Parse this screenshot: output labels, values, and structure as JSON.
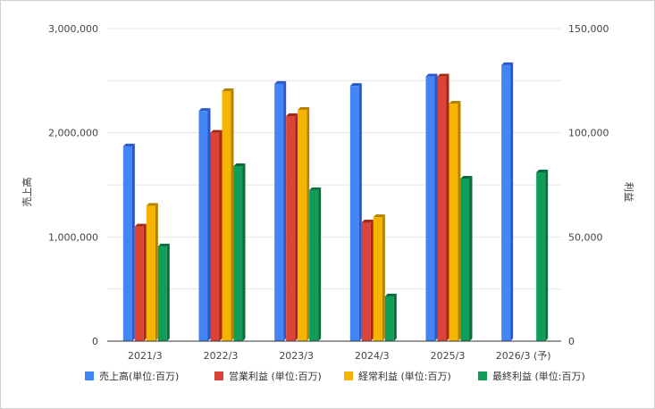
{
  "chart_data": {
    "type": "bar",
    "categories": [
      "2021/3",
      "2022/3",
      "2023/3",
      "2024/3",
      "2025/3",
      "2026/3 (予)"
    ],
    "left_axis": {
      "label": "売上高",
      "ylim": [
        0,
        3000000
      ],
      "ticks": [
        0,
        1000000,
        2000000,
        3000000
      ],
      "tick_labels": [
        "0",
        "1,000,000",
        "2,000,000",
        "3,000,000"
      ]
    },
    "right_axis": {
      "label": "利益",
      "ylim": [
        0,
        150000
      ],
      "ticks": [
        0,
        50000,
        100000,
        150000
      ],
      "tick_labels": [
        "0",
        "50,000",
        "100,000",
        "150,000"
      ]
    },
    "series": [
      {
        "name": "売上高(単位:百万)",
        "axis": "left",
        "color": "#4285f4",
        "side_color": "#2a56c6",
        "values": [
          1870000,
          2210000,
          2470000,
          2450000,
          2540000,
          2650000
        ]
      },
      {
        "name": "営業利益 (単位:百万)",
        "axis": "right",
        "color": "#db4437",
        "side_color": "#a52714",
        "values": [
          55000,
          100000,
          108000,
          57000,
          127000,
          null
        ]
      },
      {
        "name": "経常利益 (単位:百万)",
        "axis": "right",
        "color": "#f4b400",
        "side_color": "#b38300",
        "values": [
          65000,
          120000,
          111000,
          59500,
          114000,
          null
        ]
      },
      {
        "name": "最終利益 (単位:百万)",
        "axis": "right",
        "color": "#0f9d58",
        "side_color": "#0b6b3c",
        "values": [
          45500,
          84000,
          72500,
          21500,
          78000,
          81000
        ]
      }
    ],
    "grid": true,
    "legend_position": "bottom"
  }
}
